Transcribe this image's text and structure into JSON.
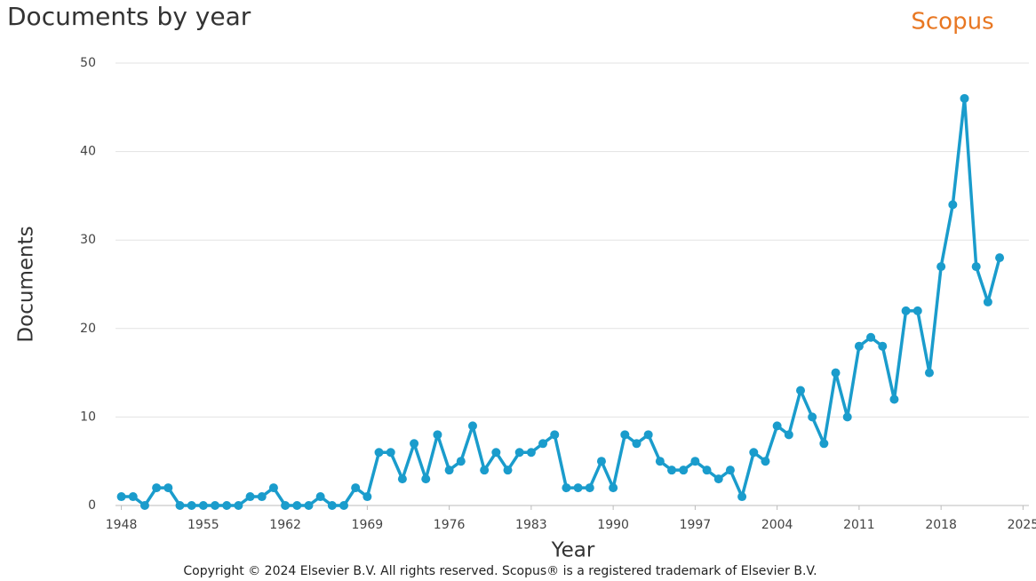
{
  "chart_data": {
    "type": "line",
    "title": "Documents by year",
    "x_label": "Year",
    "y_label": "Documents",
    "color": "#1a9ccc",
    "x": [
      1948,
      1949,
      1950,
      1951,
      1952,
      1953,
      1954,
      1955,
      1956,
      1957,
      1958,
      1959,
      1960,
      1961,
      1962,
      1963,
      1964,
      1965,
      1966,
      1967,
      1968,
      1969,
      1970,
      1971,
      1972,
      1973,
      1974,
      1975,
      1976,
      1977,
      1978,
      1979,
      1980,
      1981,
      1982,
      1983,
      1984,
      1985,
      1986,
      1987,
      1988,
      1989,
      1990,
      1991,
      1992,
      1993,
      1994,
      1995,
      1996,
      1997,
      1998,
      1999,
      2000,
      2001,
      2002,
      2003,
      2004,
      2005,
      2006,
      2007,
      2008,
      2009,
      2010,
      2011,
      2012,
      2013,
      2014,
      2015,
      2016,
      2017,
      2018,
      2019,
      2020,
      2021,
      2022,
      2023
    ],
    "values": [
      1,
      1,
      0,
      2,
      2,
      0,
      0,
      0,
      0,
      0,
      0,
      1,
      1,
      2,
      0,
      0,
      0,
      1,
      0,
      0,
      2,
      1,
      6,
      6,
      3,
      7,
      3,
      8,
      4,
      5,
      9,
      4,
      6,
      4,
      6,
      6,
      7,
      8,
      2,
      2,
      2,
      5,
      2,
      8,
      7,
      8,
      5,
      4,
      4,
      5,
      4,
      3,
      4,
      1,
      6,
      5,
      9,
      8,
      13,
      10,
      7,
      15,
      10,
      18,
      19,
      18,
      12,
      22,
      22,
      15,
      27,
      34,
      46,
      27,
      23,
      28
    ],
    "xlim": [
      1947.5,
      2025.5
    ],
    "ylim": [
      0,
      50
    ],
    "xticks": [
      1948,
      1955,
      1962,
      1969,
      1976,
      1983,
      1990,
      1997,
      2004,
      2011,
      2018,
      2025
    ],
    "yticks": [
      0,
      10,
      20,
      30,
      40,
      50
    ],
    "grid": true
  },
  "brand": "Scopus",
  "footer": "Copyright © 2024 Elsevier B.V. All rights reserved. Scopus® is a registered trademark of Elsevier B.V."
}
